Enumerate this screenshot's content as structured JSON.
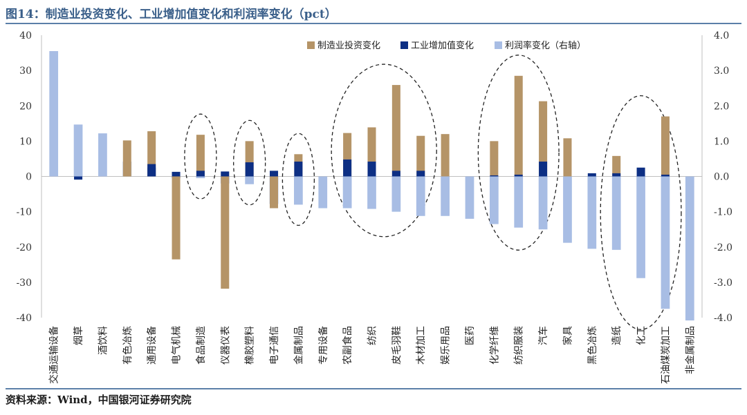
{
  "title": "图14：制造业投资变化、工业增加值变化和利润率变化（pct）",
  "source": "资料来源：Wind，中国银河证券研究院",
  "colors": {
    "investment": "#b59467",
    "industrial": "#0d2f84",
    "profit": "#a8bde4",
    "title": "#3a5f8a",
    "rule": "#5b7fa8"
  },
  "chart_data": {
    "type": "bar",
    "legend_position": "top-right",
    "categories": [
      "交通运输设备",
      "烟草",
      "酒饮料",
      "有色冶炼",
      "通用设备",
      "电气机械",
      "食品制造",
      "仪器仪表",
      "橡胶塑料",
      "电子通信",
      "金属制品",
      "专用设备",
      "农副食品",
      "纺织",
      "皮毛羽鞋",
      "木材加工",
      "娱乐用品",
      "医药",
      "化学纤维",
      "纺织服装",
      "汽车",
      "家具",
      "黑色冶炼",
      "造纸",
      "化工",
      "石油煤炭加工",
      "非金属制品"
    ],
    "series": [
      {
        "name": "制造业投资变化",
        "axis": "left",
        "color": "#b59467",
        "values": [
          0,
          0,
          0,
          10.2,
          12.8,
          -23.5,
          11.8,
          -31.8,
          10,
          -9,
          6.3,
          0,
          12.3,
          13.9,
          25.9,
          11.5,
          12,
          0,
          10,
          28.5,
          21.3,
          10.8,
          0,
          5.8,
          0,
          17,
          0
        ]
      },
      {
        "name": "工业增加值变化",
        "axis": "left",
        "color": "#0d2f84",
        "values": [
          0,
          -0.9,
          0,
          0,
          3.5,
          1.3,
          1.6,
          1.4,
          4,
          1.6,
          4.2,
          0,
          4.8,
          4.2,
          1.6,
          1.6,
          0,
          0,
          0.3,
          0.5,
          4.2,
          0,
          0.9,
          0.9,
          2.5,
          0.5,
          0
        ]
      },
      {
        "name": "利润率变化（右轴）",
        "axis": "right",
        "color": "#a8bde4",
        "values": [
          3.55,
          1.47,
          1.22,
          0.42,
          0.25,
          -0.05,
          -0.05,
          -0.2,
          -0.22,
          -0.78,
          -0.8,
          -0.9,
          -0.9,
          -0.92,
          -1.0,
          -1.12,
          -1.12,
          -1.2,
          -1.35,
          -1.45,
          -1.5,
          -1.88,
          -2.05,
          -2.08,
          -2.88,
          -3.75,
          -4.08
        ]
      }
    ],
    "ylim_left": [
      -40,
      40
    ],
    "yticks_left": [
      40,
      30,
      20,
      10,
      0,
      -10,
      -20,
      -30,
      -40
    ],
    "ylim_right": [
      -4.0,
      4.0
    ],
    "yticks_right": [
      "4.0",
      "3.0",
      "2.0",
      "1.0",
      "0.0",
      "-1.0",
      "-2.0",
      "-3.0",
      "-4.0"
    ],
    "highlights": [
      {
        "from": "食品制造",
        "to": "食品制造"
      },
      {
        "from": "橡胶塑料",
        "to": "橡胶塑料"
      },
      {
        "from": "金属制品",
        "to": "金属制品"
      },
      {
        "from": "农副食品",
        "to": "木材加工"
      },
      {
        "from": "化学纤维",
        "to": "汽车"
      },
      {
        "from": "造纸",
        "to": "石油煤炭加工"
      }
    ]
  }
}
